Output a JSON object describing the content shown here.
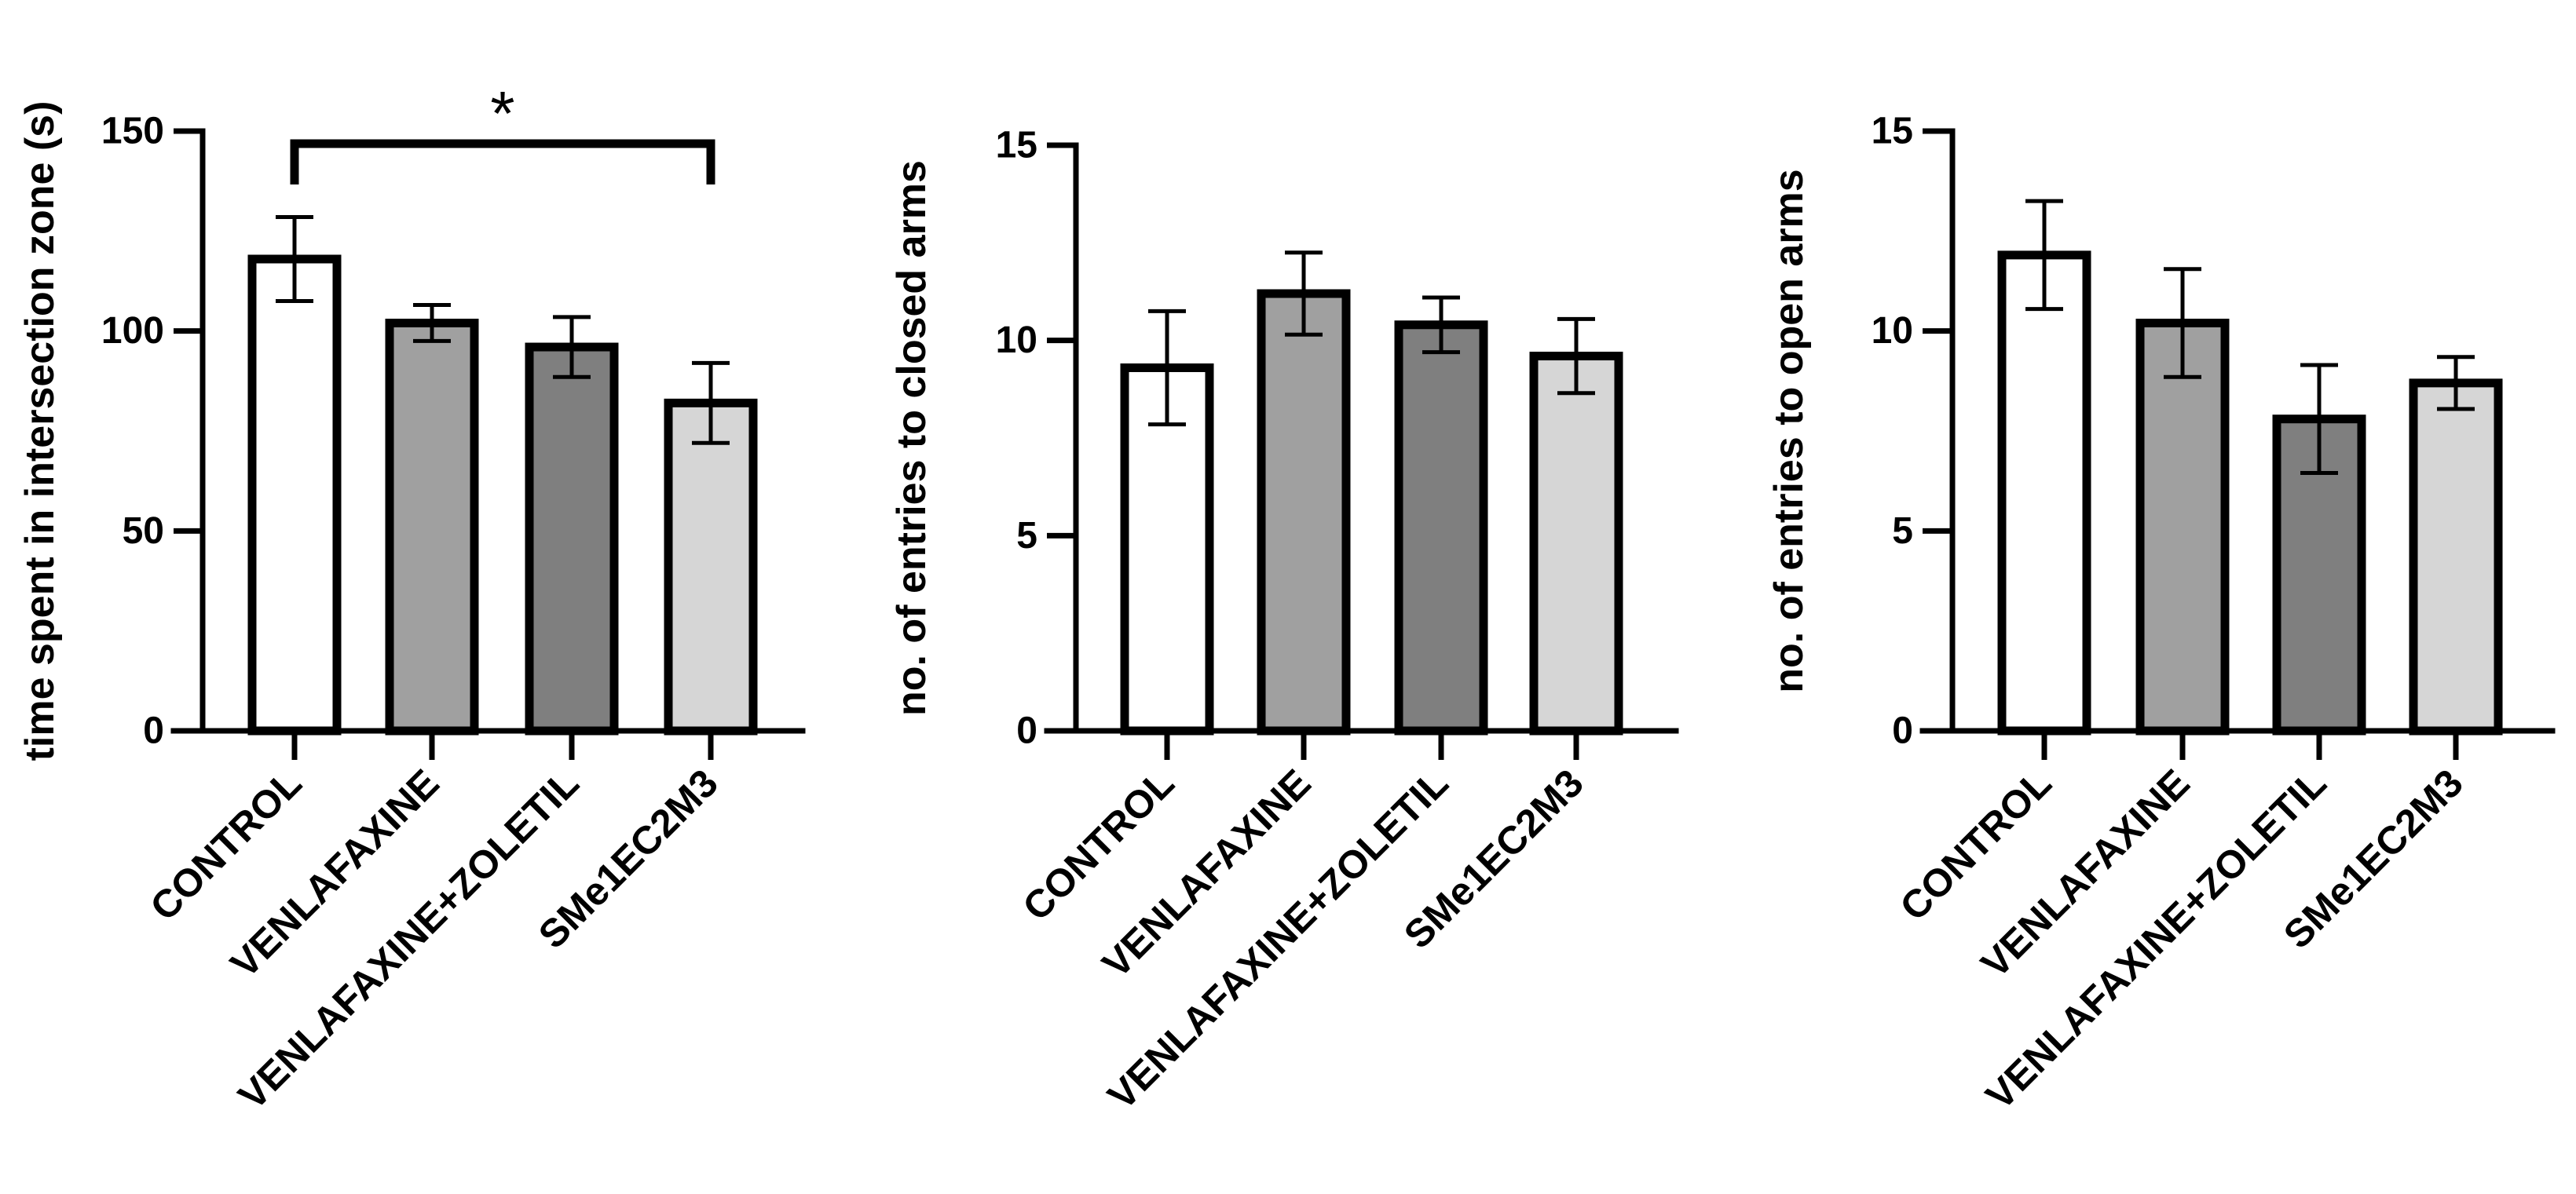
{
  "colors": {
    "CONTROL": "#ffffff",
    "VENLAFAXINE": "#a0a0a0",
    "VENLAFAXINE+ZOLETIL": "#7f7f7f",
    "SMe1EC2M3": "#d6d6d6",
    "stroke": "#000000"
  },
  "chart_data": [
    {
      "type": "bar",
      "title": "",
      "xlabel": "",
      "ylabel": "time spent in intersection zone (s)",
      "categories": [
        "CONTROL",
        "VENLAFAXINE",
        "VENLAFAXINE+ZOLETIL",
        "SMe1EC2M3"
      ],
      "values": [
        118,
        102,
        96,
        82
      ],
      "errors": [
        10.5,
        4.5,
        7.5,
        10
      ],
      "ylim": [
        0,
        150
      ],
      "yticks": [
        0,
        50,
        100,
        150
      ],
      "grid": false,
      "significance": [
        {
          "from": "CONTROL",
          "to": "SMe1EC2M3",
          "label": "*"
        }
      ]
    },
    {
      "type": "bar",
      "title": "",
      "xlabel": "",
      "ylabel": "no. of entries to closed arms",
      "categories": [
        "CONTROL",
        "VENLAFAXINE",
        "VENLAFAXINE+ZOLETIL",
        "SMe1EC2M3"
      ],
      "values": [
        9.3,
        11.2,
        10.4,
        9.6
      ],
      "errors": [
        1.45,
        1.05,
        0.7,
        0.95
      ],
      "ylim": [
        0,
        15
      ],
      "yticks": [
        0,
        5,
        10,
        15
      ],
      "grid": false,
      "significance": []
    },
    {
      "type": "bar",
      "title": "",
      "xlabel": "",
      "ylabel": "no. of entries to open arms",
      "categories": [
        "CONTROL",
        "VENLAFAXINE",
        "VENLAFAXINE+ZOLETIL",
        "SMe1EC2M3"
      ],
      "values": [
        11.9,
        10.2,
        7.8,
        8.7
      ],
      "errors": [
        1.35,
        1.35,
        1.35,
        0.65
      ],
      "ylim": [
        0,
        15
      ],
      "yticks": [
        0,
        5,
        10,
        15
      ],
      "grid": false,
      "significance": []
    }
  ]
}
